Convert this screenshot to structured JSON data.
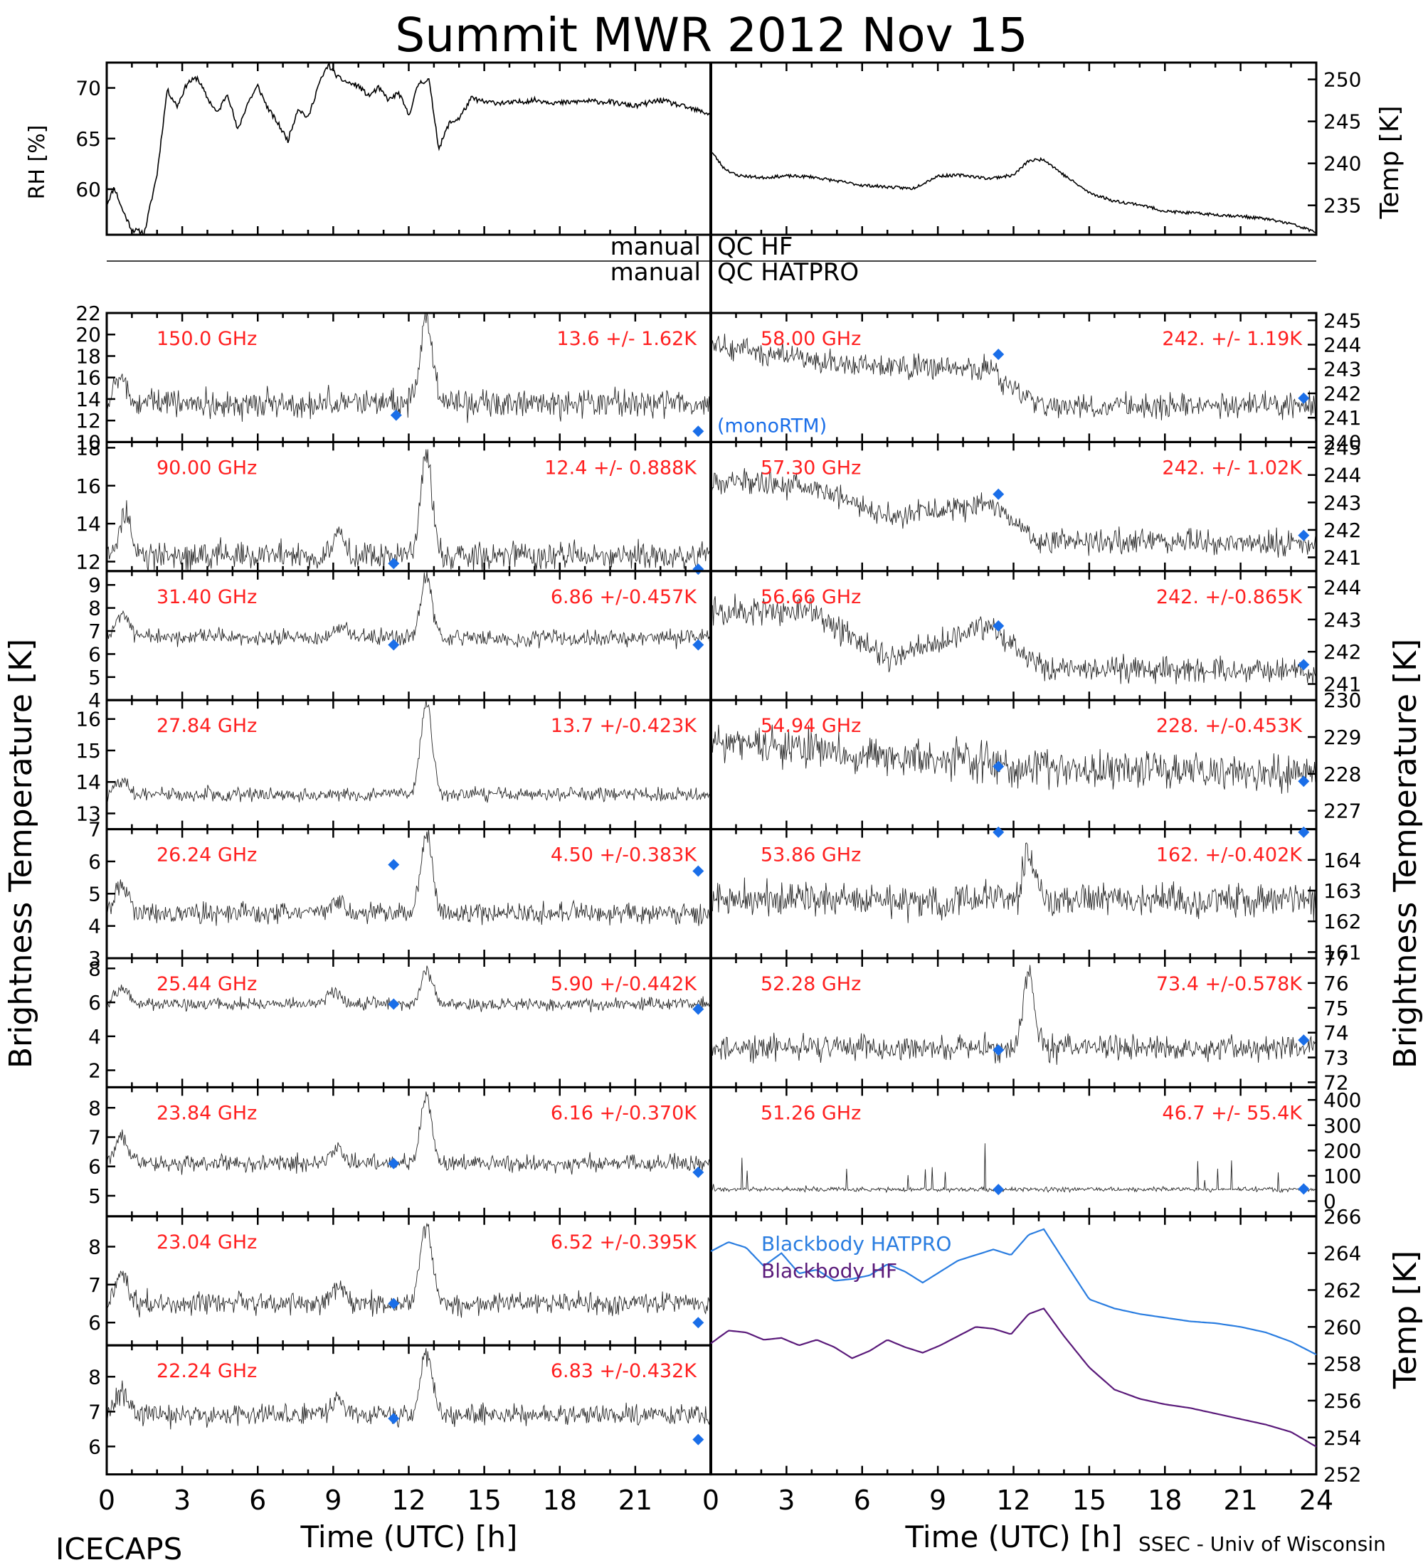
{
  "title": "Summit MWR 2012 Nov 15",
  "footer": {
    "left_label": "ICECAPS",
    "right_label": "SSEC - Univ of Wisconsin",
    "xlabel": "Time (UTC) [h]"
  },
  "qc": {
    "line1_left": "manual",
    "line1_right": "QC HF",
    "line2_left": "manual",
    "line2_right": "QC HATPRO"
  },
  "axis_titles": {
    "left": "Brightness Temperature [K]",
    "right": "Brightness Temperature [K]",
    "rh": "RH [%]",
    "temp": "Temp [K]",
    "bb_temp": "Temp [K]"
  },
  "colors": {
    "stat_text": "#ff2020",
    "marker": "#1a6ee8",
    "bb_hatpro": "#2a7de0",
    "bb_hf": "#5a1a7a",
    "trace": "#000000"
  },
  "chart_data": [
    {
      "type": "line",
      "panel": "rh",
      "ylabel": "RH [%]",
      "xlim": [
        0,
        24
      ],
      "ylim": [
        55.5,
        72.5
      ],
      "yticks": [
        60,
        65,
        70
      ],
      "x": [
        0,
        0.3,
        0.6,
        1.0,
        1.5,
        2.0,
        2.4,
        2.8,
        3.2,
        3.6,
        4.0,
        4.4,
        4.8,
        5.2,
        5.6,
        6.0,
        6.4,
        6.8,
        7.2,
        7.6,
        8.0,
        8.4,
        8.8,
        9.2,
        9.6,
        10.0,
        10.4,
        10.8,
        11.2,
        11.6,
        12.0,
        12.4,
        12.8,
        13.2,
        13.6,
        14.0,
        14.5,
        15.0,
        16,
        17,
        18,
        19,
        20,
        21,
        22,
        23,
        24
      ],
      "y": [
        58.5,
        60.2,
        58.1,
        56.0,
        55.7,
        61.5,
        69.8,
        68.2,
        70.5,
        71.0,
        69.0,
        67.5,
        69.5,
        65.8,
        68.5,
        70.2,
        68.0,
        66.5,
        64.8,
        68.0,
        67.0,
        70.2,
        72.3,
        71.0,
        70.5,
        70.2,
        69.2,
        70.0,
        68.8,
        69.5,
        67.3,
        70.5,
        70.8,
        64.0,
        66.5,
        67.0,
        69.0,
        68.6,
        68.5,
        68.8,
        68.5,
        68.7,
        68.6,
        68.2,
        68.8,
        68.1,
        67.4
      ]
    },
    {
      "type": "line",
      "panel": "temp",
      "ylabel": "Temp [K]",
      "xlim": [
        0,
        24
      ],
      "ylim": [
        231.5,
        252
      ],
      "yticks": [
        235,
        240,
        245,
        250
      ],
      "x": [
        0,
        0.5,
        1.0,
        2,
        3,
        4,
        5,
        6,
        7,
        8,
        9,
        10,
        11,
        12,
        12.6,
        13.2,
        14,
        15,
        16,
        17,
        18,
        19,
        20,
        21,
        22,
        23,
        24
      ],
      "y": [
        241.5,
        239.5,
        238.6,
        238.3,
        238.5,
        238.4,
        237.9,
        237.4,
        237.2,
        237.0,
        238.5,
        238.6,
        238.2,
        238.6,
        240.3,
        240.5,
        238.6,
        236.5,
        235.5,
        235.1,
        234.3,
        234.1,
        233.9,
        233.7,
        233.4,
        232.8,
        231.8
      ]
    },
    {
      "type": "line",
      "panel": "blackbody",
      "ylabel": "Temp [K]",
      "xlim": [
        0,
        24
      ],
      "ylim": [
        252,
        266
      ],
      "yticks": [
        252,
        254,
        256,
        258,
        260,
        262,
        264,
        266
      ],
      "series": [
        {
          "name": "Blackbody HATPRO",
          "x": [
            0,
            0.7,
            1.4,
            2.1,
            2.8,
            3.5,
            4.2,
            4.9,
            5.6,
            6.3,
            7.0,
            7.7,
            8.4,
            9.1,
            9.8,
            10.5,
            11.2,
            11.9,
            12.6,
            13.2,
            14,
            15,
            16,
            17,
            18,
            19,
            20,
            21,
            22,
            23,
            24
          ],
          "y": [
            264.1,
            264.6,
            264.3,
            263.3,
            264.0,
            262.9,
            263.1,
            262.5,
            262.6,
            262.8,
            263.4,
            263.0,
            262.4,
            263.0,
            263.6,
            263.9,
            264.2,
            263.9,
            265.0,
            265.3,
            263.6,
            261.5,
            261.0,
            260.7,
            260.5,
            260.3,
            260.2,
            260.0,
            259.7,
            259.2,
            258.5
          ]
        },
        {
          "name": "Blackbody HF",
          "x": [
            0,
            0.7,
            1.4,
            2.1,
            2.8,
            3.5,
            4.2,
            4.9,
            5.6,
            6.3,
            7.0,
            7.7,
            8.4,
            9.1,
            9.8,
            10.5,
            11.2,
            11.9,
            12.6,
            13.2,
            14,
            15,
            16,
            17,
            18,
            19,
            20,
            21,
            22,
            23,
            24
          ],
          "y": [
            259.1,
            259.8,
            259.7,
            259.3,
            259.4,
            259.0,
            259.3,
            258.9,
            258.3,
            258.7,
            259.3,
            258.9,
            258.6,
            259.0,
            259.5,
            260.0,
            259.9,
            259.6,
            260.7,
            261.0,
            259.5,
            257.8,
            256.6,
            256.1,
            255.8,
            255.6,
            255.3,
            255.0,
            254.7,
            254.3,
            253.5
          ]
        }
      ]
    },
    {
      "type": "scatter",
      "panel": "left_channels",
      "xlabel": "Time (UTC) [h]",
      "xlim": [
        0,
        24
      ],
      "xticks": [
        0,
        3,
        6,
        9,
        12,
        15,
        18,
        21
      ],
      "channels": [
        {
          "freq": "150.0 GHz",
          "stat": "13.6 +/-  1.62K",
          "ylim": [
            10,
            22
          ],
          "yticks": [
            10,
            12,
            14,
            16,
            18,
            20,
            22
          ],
          "base": 13.6,
          "noise": 0.9,
          "peak": 21.8,
          "bumps": [
            [
              0.5,
              16.0
            ]
          ],
          "markers": [
            [
              11.5,
              12.5
            ],
            [
              23.5,
              11.0
            ]
          ]
        },
        {
          "freq": "90.00 GHz",
          "stat": "12.4 +/- 0.888K",
          "ylim": [
            11.5,
            18.3
          ],
          "yticks": [
            12,
            14,
            16,
            18
          ],
          "base": 12.3,
          "noise": 0.5,
          "peak": 17.8,
          "bumps": [
            [
              0.7,
              14.4
            ],
            [
              9.2,
              13.4
            ]
          ],
          "markers": [
            [
              11.4,
              11.9
            ],
            [
              23.5,
              11.6
            ]
          ]
        },
        {
          "freq": "31.40 GHz",
          "stat": "6.86 +/-0.457K",
          "ylim": [
            4,
            9.6
          ],
          "yticks": [
            4,
            5,
            6,
            7,
            8,
            9
          ],
          "base": 6.7,
          "noise": 0.25,
          "peak": 9.3,
          "bumps": [
            [
              0.6,
              7.8
            ],
            [
              9.4,
              7.1
            ]
          ],
          "markers": [
            [
              11.4,
              6.4
            ],
            [
              23.5,
              6.4
            ]
          ]
        },
        {
          "freq": "27.84 GHz",
          "stat": "13.7 +/-0.423K",
          "ylim": [
            12.5,
            16.6
          ],
          "yticks": [
            13,
            14,
            15,
            16
          ],
          "base": 13.6,
          "noise": 0.15,
          "peak": 16.5,
          "bumps": [
            [
              0.6,
              14.1
            ]
          ],
          "markers": []
        },
        {
          "freq": "26.24 GHz",
          "stat": "4.50 +/-0.383K",
          "ylim": [
            3,
            7
          ],
          "yticks": [
            3,
            4,
            5,
            6,
            7
          ],
          "base": 4.4,
          "noise": 0.22,
          "peak": 6.9,
          "bumps": [
            [
              0.6,
              5.3
            ],
            [
              9.2,
              4.8
            ]
          ],
          "markers": [
            [
              11.4,
              5.9
            ],
            [
              23.5,
              5.7
            ]
          ]
        },
        {
          "freq": "25.44 GHz",
          "stat": "5.90 +/-0.442K",
          "ylim": [
            1,
            8.6
          ],
          "yticks": [
            2,
            4,
            6,
            8
          ],
          "base": 5.9,
          "noise": 0.25,
          "peak": 7.9,
          "bumps": [
            [
              0.6,
              6.9
            ],
            [
              9.0,
              6.7
            ]
          ],
          "markers": [
            [
              11.4,
              5.9
            ],
            [
              23.5,
              5.6
            ]
          ]
        },
        {
          "freq": "23.84 GHz",
          "stat": "6.16 +/-0.370K",
          "ylim": [
            4.3,
            8.7
          ],
          "yticks": [
            5,
            6,
            7,
            8
          ],
          "base": 6.1,
          "noise": 0.2,
          "peak": 8.3,
          "bumps": [
            [
              0.6,
              7.1
            ],
            [
              9.2,
              6.6
            ]
          ],
          "markers": [
            [
              11.4,
              6.1
            ],
            [
              23.5,
              5.8
            ]
          ]
        },
        {
          "freq": "23.04 GHz",
          "stat": "6.52 +/-0.395K",
          "ylim": [
            5.4,
            8.8
          ],
          "yticks": [
            6,
            7,
            8
          ],
          "base": 6.5,
          "noise": 0.2,
          "peak": 8.6,
          "bumps": [
            [
              0.6,
              7.3
            ],
            [
              9.2,
              7.0
            ]
          ],
          "markers": [
            [
              11.4,
              6.5
            ],
            [
              23.5,
              6.0
            ]
          ]
        },
        {
          "freq": "22.24 GHz",
          "stat": "6.83 +/-0.432K",
          "ylim": [
            5.2,
            8.9
          ],
          "yticks": [
            6,
            7,
            8
          ],
          "base": 6.9,
          "noise": 0.22,
          "peak": 8.7,
          "bumps": [
            [
              0.6,
              7.6
            ],
            [
              9.2,
              7.4
            ]
          ],
          "markers": [
            [
              11.4,
              6.8
            ],
            [
              23.5,
              6.2
            ]
          ]
        }
      ]
    },
    {
      "type": "scatter",
      "panel": "right_channels",
      "xlabel": "Time (UTC) [h]",
      "xlim": [
        0,
        24
      ],
      "xticks": [
        0,
        3,
        6,
        9,
        12,
        15,
        18,
        21,
        24
      ],
      "legend_note": "(monoRTM)",
      "channels": [
        {
          "freq": "58.00 GHz",
          "stat": "242. +/- 1.19K",
          "ylim": [
            240,
            245.3
          ],
          "yticks": [
            240,
            241,
            242,
            243,
            244,
            245
          ],
          "base": 241.8,
          "noise": 0.35,
          "trend": [
            [
              0,
              244.0
            ],
            [
              5,
              243.2
            ],
            [
              11,
              243.0
            ],
            [
              13,
              241.5
            ],
            [
              24,
              241.5
            ]
          ],
          "markers": [
            [
              11.4,
              243.6
            ],
            [
              23.5,
              241.8
            ]
          ]
        },
        {
          "freq": "57.30 GHz",
          "stat": "242. +/- 1.02K",
          "ylim": [
            240.5,
            245.2
          ],
          "yticks": [
            241,
            242,
            243,
            244,
            245
          ],
          "base": 242.0,
          "noise": 0.3,
          "trend": [
            [
              0,
              243.8
            ],
            [
              4,
              243.6
            ],
            [
              7,
              242.5
            ],
            [
              11,
              243.0
            ],
            [
              13,
              241.6
            ],
            [
              24,
              241.5
            ]
          ],
          "markers": [
            [
              11.4,
              243.3
            ],
            [
              23.5,
              241.8
            ]
          ]
        },
        {
          "freq": "56.66 GHz",
          "stat": "242. +/-0.865K",
          "ylim": [
            240.5,
            244.5
          ],
          "yticks": [
            241,
            242,
            243,
            244
          ],
          "base": 242.0,
          "noise": 0.28,
          "trend": [
            [
              0,
              243.3
            ],
            [
              4,
              243.2
            ],
            [
              7,
              241.8
            ],
            [
              11,
              242.8
            ],
            [
              13,
              241.5
            ],
            [
              24,
              241.4
            ]
          ],
          "markers": [
            [
              11.4,
              242.8
            ],
            [
              23.5,
              241.6
            ]
          ]
        },
        {
          "freq": "54.94 GHz",
          "stat": "228. +/-0.453K",
          "ylim": [
            226.5,
            230
          ],
          "yticks": [
            227,
            228,
            229,
            230
          ],
          "base": 228.3,
          "noise": 0.35,
          "trend": [
            [
              0,
              228.9
            ],
            [
              12,
              228.2
            ],
            [
              24,
              228.0
            ]
          ],
          "markers": [
            [
              11.4,
              228.2
            ],
            [
              23.5,
              227.8
            ]
          ]
        },
        {
          "freq": "53.86 GHz",
          "stat": "162. +/-0.402K",
          "ylim": [
            160.8,
            165
          ],
          "yticks": [
            161,
            162,
            163,
            164
          ],
          "base": 162.7,
          "noise": 0.4,
          "peak": 164.2,
          "markers": [
            [
              11.4,
              164.9
            ],
            [
              23.5,
              164.9
            ]
          ]
        },
        {
          "freq": "52.28 GHz",
          "stat": "73.4 +/-0.578K",
          "ylim": [
            71.8,
            77
          ],
          "yticks": [
            72,
            73,
            74,
            75,
            76,
            77
          ],
          "base": 73.4,
          "noise": 0.35,
          "peak": 76.4,
          "markers": [
            [
              11.4,
              73.3
            ],
            [
              23.5,
              73.7
            ]
          ]
        },
        {
          "freq": "51.26 GHz",
          "stat": "46.7 +/- 55.4K",
          "ylim": [
            -60,
            450
          ],
          "yticks": [
            0,
            100,
            200,
            300,
            400
          ],
          "base": 46,
          "noise": 6,
          "markers": [
            [
              11.4,
              46
            ],
            [
              23.5,
              48
            ]
          ]
        }
      ]
    }
  ]
}
